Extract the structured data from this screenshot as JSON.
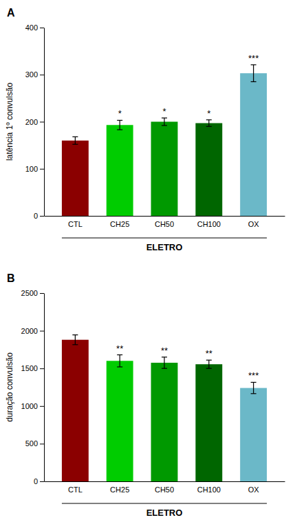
{
  "chart_data": [
    {
      "type": "bar",
      "title": "A",
      "categories": [
        "CTL",
        "CH25",
        "CH50",
        "CH100",
        "OX"
      ],
      "values": [
        160,
        193,
        200,
        197,
        303
      ],
      "errors": [
        8,
        10,
        8,
        7,
        18
      ],
      "colors": [
        "#8B0000",
        "#00CC00",
        "#009900",
        "#006600",
        "#6BB8C8"
      ],
      "ylabel": "latência 1º convulsão",
      "xlabel": "ELETRO",
      "ylim": [
        0,
        400
      ],
      "yticks": [
        0,
        100,
        200,
        300,
        400
      ],
      "annotations": [
        null,
        "*",
        "*",
        "*",
        "***"
      ],
      "grid": false
    },
    {
      "type": "bar",
      "title": "B",
      "categories": [
        "CTL",
        "CH25",
        "CH50",
        "CH100",
        "OX"
      ],
      "values": [
        1880,
        1600,
        1575,
        1555,
        1240
      ],
      "errors": [
        65,
        80,
        75,
        55,
        75
      ],
      "colors": [
        "#8B0000",
        "#00CC00",
        "#009900",
        "#006600",
        "#6BB8C8"
      ],
      "ylabel": "duração convulsão",
      "xlabel": "ELETRO",
      "ylim": [
        0,
        2500
      ],
      "yticks": [
        0,
        500,
        1000,
        1500,
        2000,
        2500
      ],
      "annotations": [
        null,
        "**",
        "**",
        "**",
        "***"
      ],
      "grid": false
    }
  ]
}
